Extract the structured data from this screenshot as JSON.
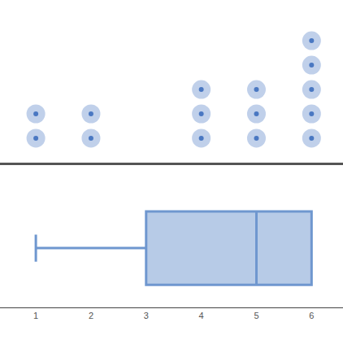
{
  "chart_data": [
    {
      "type": "dot",
      "x": [
        1,
        2,
        4,
        5,
        6
      ],
      "values": [
        2,
        2,
        3,
        3,
        5
      ],
      "xlim": [
        0.35,
        6.57
      ],
      "ylim": [
        0,
        6.67
      ],
      "color": "#4a78c2",
      "tick_labels": false
    },
    {
      "type": "box",
      "min": 1,
      "q1": 3,
      "median": 5,
      "q3": 6,
      "max": 6,
      "xlim": [
        0.35,
        6.57
      ],
      "xticks": [
        1,
        2,
        3,
        4,
        5,
        6
      ],
      "color": "#6f97cf"
    }
  ]
}
